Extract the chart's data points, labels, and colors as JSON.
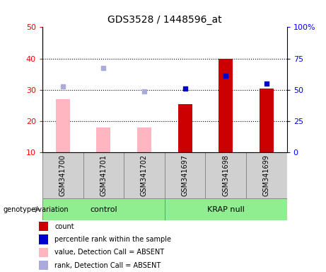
{
  "title": "GDS3528 / 1448596_at",
  "categories": [
    "GSM341700",
    "GSM341701",
    "GSM341702",
    "GSM341697",
    "GSM341698",
    "GSM341699"
  ],
  "groups": [
    "control",
    "control",
    "control",
    "KRAP null",
    "KRAP null",
    "KRAP null"
  ],
  "group_labels": [
    "control",
    "KRAP null"
  ],
  "ylim_left": [
    10,
    50
  ],
  "ylim_right": [
    0,
    100
  ],
  "left_ticks": [
    10,
    20,
    30,
    40,
    50
  ],
  "right_ticks": [
    0,
    25,
    50,
    75,
    100
  ],
  "right_tick_labels": [
    "0",
    "25",
    "50",
    "75",
    "100%"
  ],
  "pink_bars": [
    27,
    18,
    18,
    null,
    null,
    null
  ],
  "red_bars": [
    null,
    null,
    null,
    25.5,
    40,
    30.5
  ],
  "blue_squares": [
    null,
    null,
    null,
    30.5,
    34.5,
    32
  ],
  "light_blue_squares": [
    31,
    37,
    29.5,
    null,
    null,
    null
  ],
  "pink_color": "#ffb6c1",
  "red_color": "#cc0000",
  "blue_color": "#0000cd",
  "light_blue_color": "#aaaadd",
  "bar_width": 0.35,
  "grid_dotted_values": [
    20,
    30,
    40
  ],
  "plot_bg": "#ffffff",
  "grey_box_color": "#d0d0d0",
  "green_color": "#90ee90",
  "legend_items": [
    {
      "label": "count",
      "color": "#cc0000"
    },
    {
      "label": "percentile rank within the sample",
      "color": "#0000cd"
    },
    {
      "label": "value, Detection Call = ABSENT",
      "color": "#ffb6c1"
    },
    {
      "label": "rank, Detection Call = ABSENT",
      "color": "#aaaadd"
    }
  ]
}
